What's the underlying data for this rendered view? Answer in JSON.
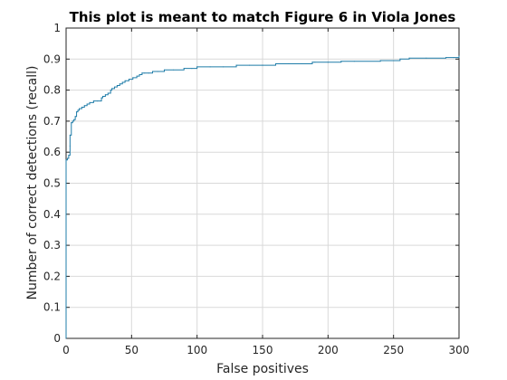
{
  "chart_data": {
    "type": "line",
    "title": "This plot is meant to match Figure 6 in Viola Jones",
    "xlabel": "False positives",
    "ylabel": "Number of correct detections (recall)",
    "xlim": [
      0,
      300
    ],
    "ylim": [
      0,
      1
    ],
    "x_ticks": [
      "0",
      "50",
      "100",
      "150",
      "200",
      "250",
      "300"
    ],
    "y_ticks": [
      "0",
      "0.1",
      "0.2",
      "0.3",
      "0.4",
      "0.5",
      "0.6",
      "0.7",
      "0.8",
      "0.9",
      "1"
    ],
    "grid": true,
    "legend": "none",
    "colors": {
      "line": "#1f7ca8",
      "axes": "#262626",
      "grid": "#d9d9d9"
    },
    "series": [
      {
        "step": "post",
        "x": [
          0,
          0,
          0,
          0,
          1,
          2,
          3,
          3,
          4,
          5,
          6,
          7,
          8,
          9,
          10,
          12,
          14,
          16,
          18,
          21,
          24,
          27,
          28,
          30,
          32,
          34,
          35,
          37,
          39,
          41,
          43,
          45,
          48,
          51,
          54,
          56,
          58,
          60,
          63,
          66,
          70,
          75,
          82,
          90,
          96,
          100,
          110,
          120,
          130,
          140,
          150,
          160,
          170,
          180,
          188,
          190,
          200,
          210,
          220,
          240,
          255,
          262,
          275,
          290,
          296,
          300
        ],
        "y": [
          0,
          0.3,
          0.5,
          0.575,
          0.58,
          0.59,
          0.62,
          0.655,
          0.695,
          0.7,
          0.705,
          0.715,
          0.73,
          0.735,
          0.74,
          0.745,
          0.75,
          0.755,
          0.76,
          0.765,
          0.765,
          0.775,
          0.78,
          0.785,
          0.79,
          0.8,
          0.805,
          0.81,
          0.815,
          0.82,
          0.825,
          0.83,
          0.835,
          0.84,
          0.845,
          0.85,
          0.855,
          0.855,
          0.855,
          0.86,
          0.86,
          0.865,
          0.865,
          0.87,
          0.87,
          0.875,
          0.875,
          0.875,
          0.88,
          0.88,
          0.88,
          0.885,
          0.885,
          0.885,
          0.89,
          0.89,
          0.89,
          0.893,
          0.893,
          0.895,
          0.9,
          0.903,
          0.903,
          0.905,
          0.905,
          0.91
        ]
      }
    ]
  }
}
